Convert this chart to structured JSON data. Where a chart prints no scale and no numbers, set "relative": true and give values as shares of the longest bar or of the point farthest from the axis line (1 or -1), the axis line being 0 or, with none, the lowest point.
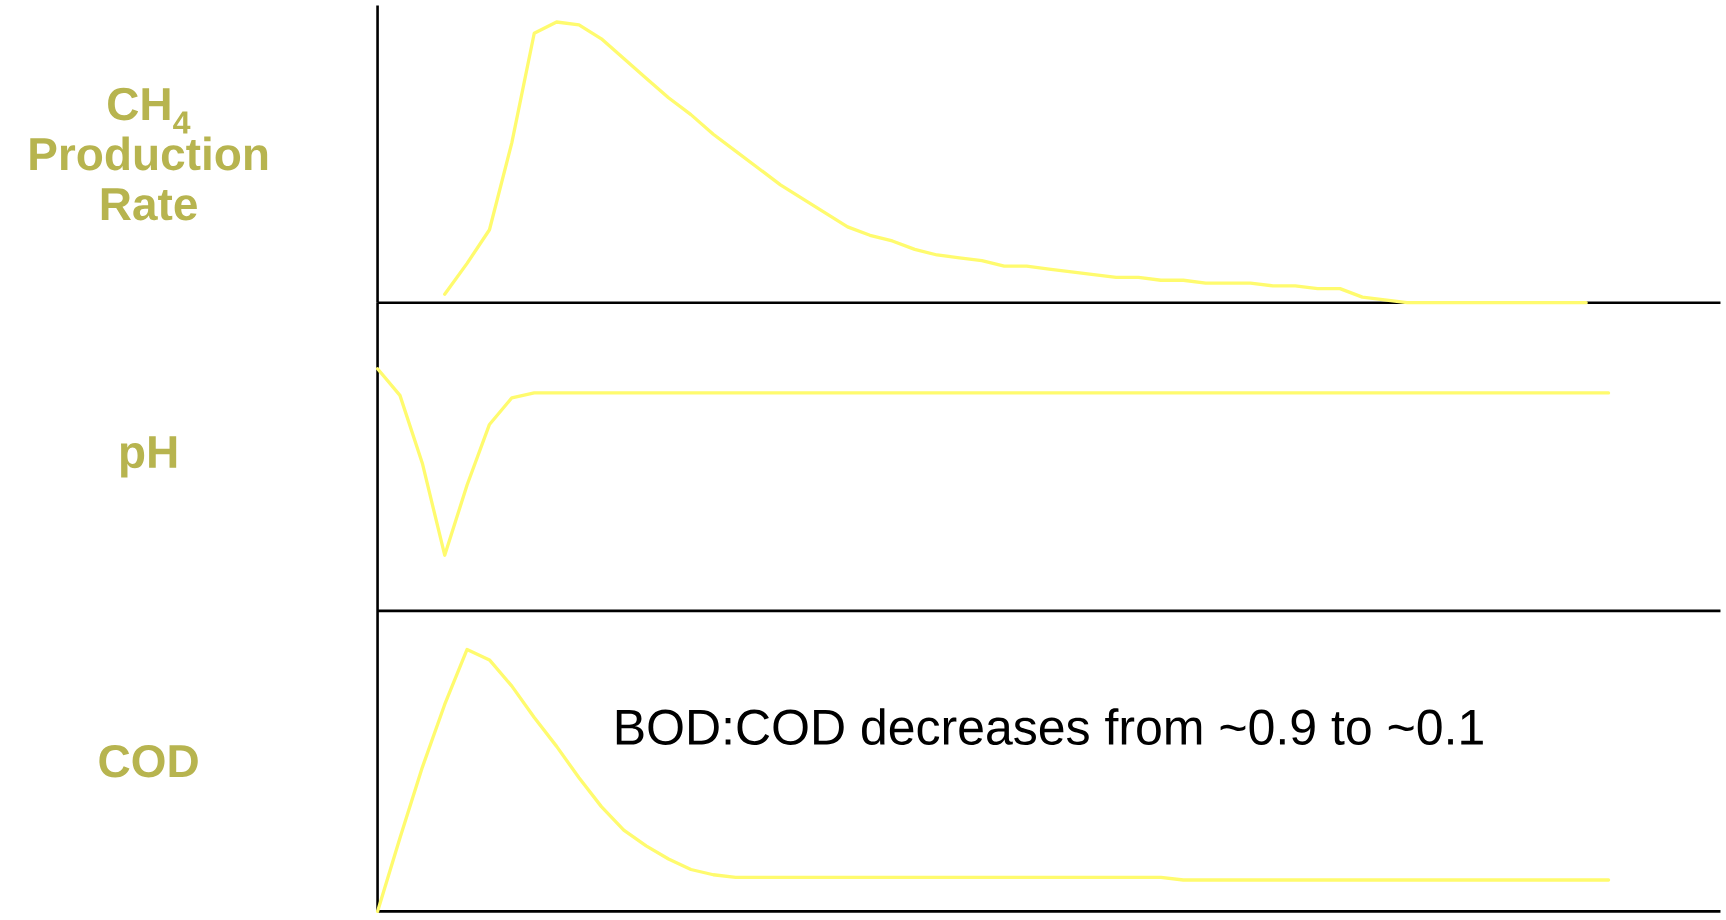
{
  "chart_data": [
    {
      "type": "line",
      "relative": true,
      "ylabel": "CH$_{4}$ Production Rate",
      "categories": [
        null,
        null,
        null,
        null,
        null,
        null,
        null,
        null,
        null,
        null,
        null,
        null,
        null,
        null,
        null,
        null,
        null,
        null,
        null,
        null,
        null,
        null,
        null,
        null,
        null,
        null,
        null,
        null,
        null,
        null,
        null,
        null,
        null,
        null,
        null,
        null,
        null,
        null,
        null,
        null,
        null,
        null,
        null,
        null,
        null,
        null,
        null,
        null,
        null,
        null,
        null,
        null,
        null,
        null,
        null,
        null,
        null,
        null,
        null,
        null,
        null
      ],
      "series": [
        {
          "color": "#fffb6e",
          "values": [
            null,
            null,
            null,
            0.03,
            0.14,
            0.26,
            0.57,
            0.96,
            1.0,
            0.99,
            0.94,
            0.87,
            0.8,
            0.73,
            0.67,
            0.6,
            0.54,
            0.48,
            0.42,
            0.37,
            0.32,
            0.27,
            0.24,
            0.22,
            0.19,
            0.17,
            0.16,
            0.15,
            0.13,
            0.13,
            0.12,
            0.11,
            0.1,
            0.09,
            0.09,
            0.08,
            0.08,
            0.07,
            0.07,
            0.07,
            0.06,
            0.06,
            0.05,
            0.05,
            0.02,
            0.01,
            0,
            0,
            0,
            0,
            0,
            0,
            0,
            0,
            0,
            null,
            null,
            null,
            null,
            null,
            null
          ]
        }
      ]
    },
    {
      "type": "line",
      "relative": true,
      "ylabel": "pH",
      "categories": [
        null,
        null,
        null,
        null,
        null,
        null,
        null,
        null,
        null,
        null,
        null,
        null,
        null,
        null,
        null,
        null,
        null,
        null,
        null,
        null,
        null,
        null,
        null,
        null,
        null,
        null,
        null,
        null,
        null,
        null,
        null,
        null,
        null,
        null,
        null,
        null,
        null,
        null,
        null,
        null,
        null,
        null,
        null,
        null,
        null,
        null,
        null,
        null,
        null,
        null,
        null,
        null,
        null,
        null,
        null,
        null,
        null,
        null,
        null,
        null,
        null
      ],
      "series": [
        {
          "color": "#fffb6e",
          "values": [
            1.0,
            0.89,
            0.61,
            0.23,
            0.52,
            0.77,
            0.88,
            0.9,
            0.9,
            0.9,
            0.9,
            0.9,
            0.9,
            0.9,
            0.9,
            0.9,
            0.9,
            0.9,
            0.9,
            0.9,
            0.9,
            0.9,
            0.9,
            0.9,
            0.9,
            0.9,
            0.9,
            0.9,
            0.9,
            0.9,
            0.9,
            0.9,
            0.9,
            0.9,
            0.9,
            0.9,
            0.9,
            0.9,
            0.9,
            0.9,
            0.9,
            0.9,
            0.9,
            0.9,
            0.9,
            0.9,
            0.9,
            0.9,
            0.9,
            0.9,
            0.9,
            0.9,
            0.9,
            0.9,
            0.9,
            0.9,
            null,
            null,
            null,
            null,
            null
          ]
        }
      ]
    },
    {
      "type": "line",
      "relative": true,
      "ylabel": "COD",
      "annotations": [
        "BOD:COD decreases from ~0.9 to ~0.1"
      ],
      "categories": [
        null,
        null,
        null,
        null,
        null,
        null,
        null,
        null,
        null,
        null,
        null,
        null,
        null,
        null,
        null,
        null,
        null,
        null,
        null,
        null,
        null,
        null,
        null,
        null,
        null,
        null,
        null,
        null,
        null,
        null,
        null,
        null,
        null,
        null,
        null,
        null,
        null,
        null,
        null,
        null,
        null,
        null,
        null,
        null,
        null,
        null,
        null,
        null,
        null,
        null,
        null,
        null,
        null,
        null,
        null,
        null,
        null,
        null,
        null,
        null,
        null
      ],
      "series": [
        {
          "color": "#fffb6e",
          "values": [
            0,
            0.28,
            0.55,
            0.79,
            1.0,
            0.96,
            0.86,
            0.74,
            0.63,
            0.51,
            0.4,
            0.31,
            0.25,
            0.2,
            0.16,
            0.14,
            0.13,
            0.13,
            0.13,
            0.13,
            0.13,
            0.13,
            0.13,
            0.13,
            0.13,
            0.13,
            0.13,
            0.13,
            0.13,
            0.13,
            0.13,
            0.13,
            0.13,
            0.13,
            0.13,
            0.13,
            0.12,
            0.12,
            0.12,
            0.12,
            0.12,
            0.12,
            0.12,
            0.12,
            0.12,
            0.12,
            0.12,
            0.12,
            0.12,
            0.12,
            0.12,
            0.12,
            0.12,
            0.12,
            0.12,
            0.12,
            null,
            null,
            null,
            null,
            null
          ]
        }
      ]
    }
  ]
}
